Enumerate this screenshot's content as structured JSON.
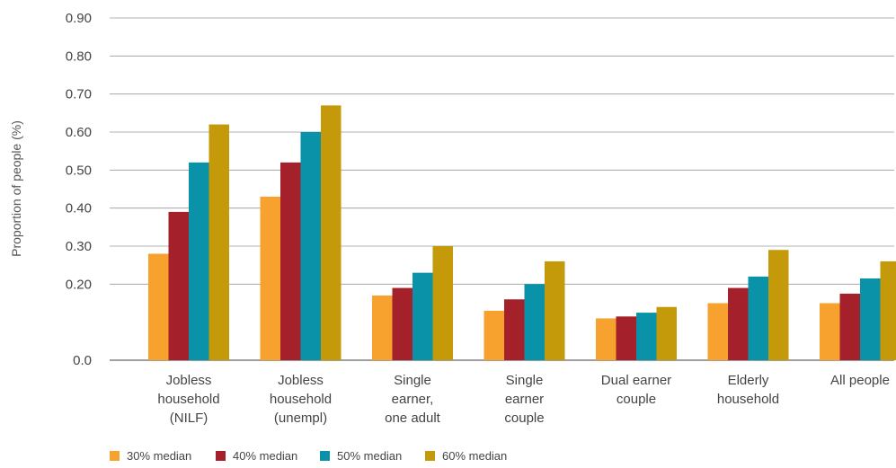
{
  "chart_data": {
    "type": "bar",
    "ylabel": "Proportion of people (%)",
    "ylim": [
      0,
      0.9
    ],
    "y_ticks": [
      {
        "value": 0.0,
        "label": "0.0"
      },
      {
        "value": 0.2,
        "label": "0.20"
      },
      {
        "value": 0.3,
        "label": "0.30"
      },
      {
        "value": 0.4,
        "label": "0.40"
      },
      {
        "value": 0.5,
        "label": "0.50"
      },
      {
        "value": 0.6,
        "label": "0.60"
      },
      {
        "value": 0.7,
        "label": "0.70"
      },
      {
        "value": 0.8,
        "label": "0.80"
      },
      {
        "value": 0.9,
        "label": "0.90"
      }
    ],
    "categories": [
      [
        "Jobless",
        "household",
        "(NILF)"
      ],
      [
        "Jobless",
        "household",
        "(unempl)"
      ],
      [
        "Single",
        "earner,",
        "one adult"
      ],
      [
        "Single",
        "earner",
        "couple"
      ],
      [
        "Dual earner",
        "couple"
      ],
      [
        "Elderly",
        "household"
      ],
      [
        "All people"
      ]
    ],
    "series": [
      {
        "name": "30% median",
        "color": "#F7A12E",
        "values": [
          0.28,
          0.43,
          0.17,
          0.13,
          0.11,
          0.15,
          0.15
        ]
      },
      {
        "name": "40% median",
        "color": "#A4202A",
        "values": [
          0.39,
          0.52,
          0.19,
          0.16,
          0.115,
          0.19,
          0.175
        ]
      },
      {
        "name": "50% median",
        "color": "#0A93A8",
        "values": [
          0.52,
          0.6,
          0.23,
          0.2,
          0.125,
          0.22,
          0.215
        ]
      },
      {
        "name": "60% median",
        "color": "#C49A0A",
        "values": [
          0.62,
          0.67,
          0.3,
          0.26,
          0.14,
          0.29,
          0.26
        ]
      }
    ],
    "grid": true,
    "legend_position": "bottom-left"
  }
}
